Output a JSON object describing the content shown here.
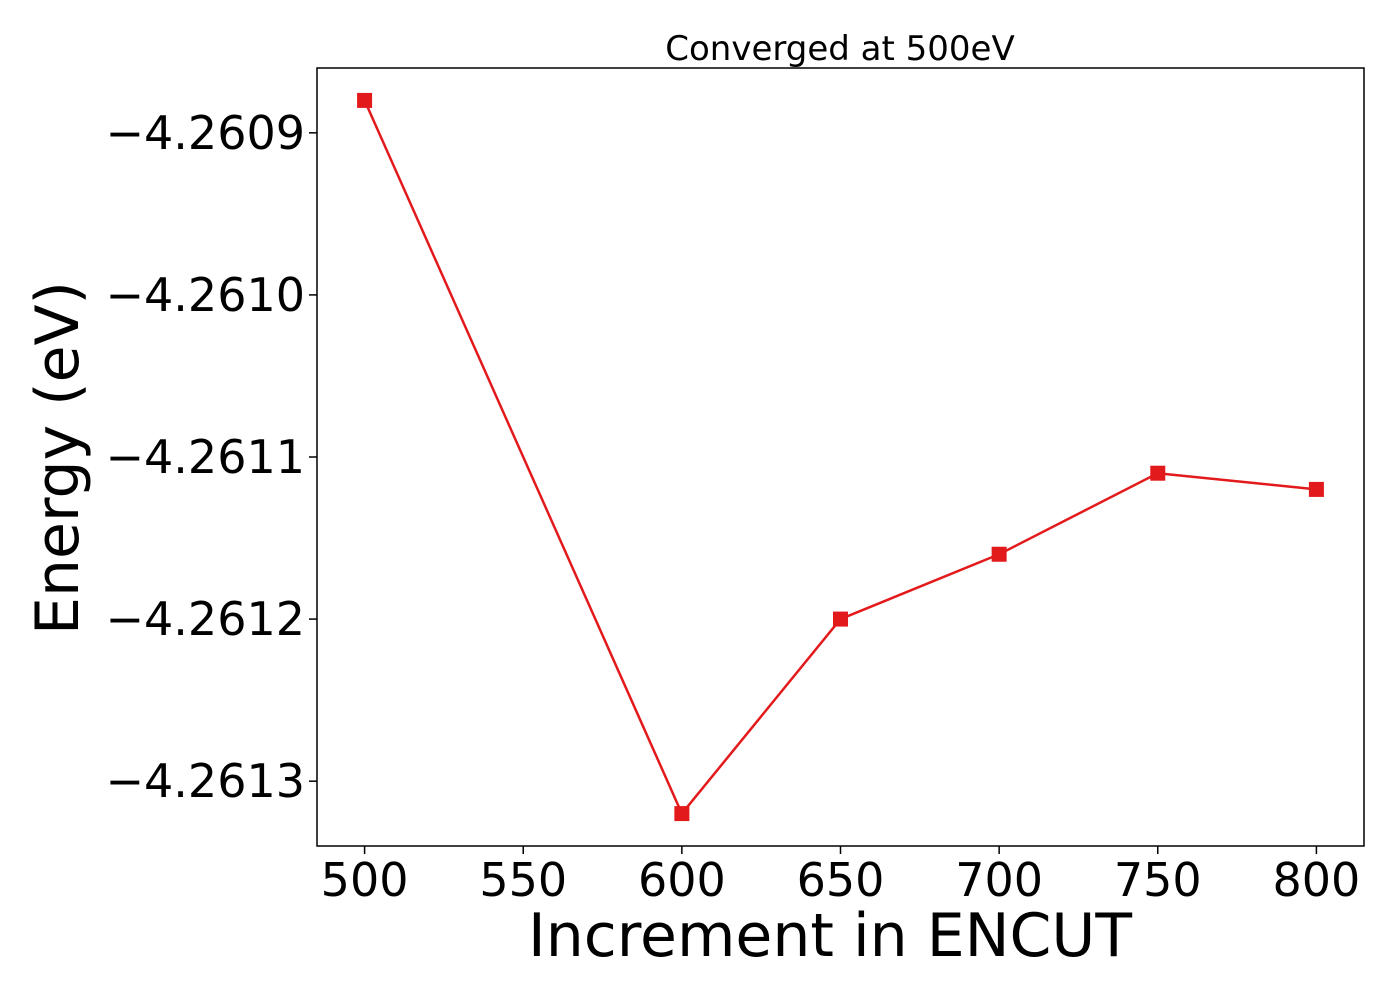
{
  "chart_data": {
    "type": "line",
    "title": "Converged at 500eV",
    "xlabel": "Increment in ENCUT",
    "ylabel": "Energy (eV)",
    "x": [
      500,
      600,
      650,
      700,
      750,
      800
    ],
    "series": [
      {
        "values": [
          -4.26088,
          -4.26132,
          -4.2612,
          -4.26116,
          -4.26111,
          -4.26112
        ],
        "color": "#e31a1c",
        "marker": "square"
      }
    ],
    "xticks": [
      500,
      550,
      600,
      650,
      700,
      750,
      800
    ],
    "xtick_labels": [
      "500",
      "550",
      "600",
      "650",
      "700",
      "750",
      "800"
    ],
    "yticks": [
      -4.2609,
      -4.261,
      -4.2611,
      -4.2612,
      -4.2613
    ],
    "ytick_labels": [
      "−4.2609",
      "−4.2610",
      "−4.2611",
      "−4.2612",
      "−4.2613"
    ],
    "xlim": [
      485,
      815
    ],
    "ylim": [
      -4.26134,
      -4.26086
    ],
    "grid": false,
    "legend": "none"
  }
}
